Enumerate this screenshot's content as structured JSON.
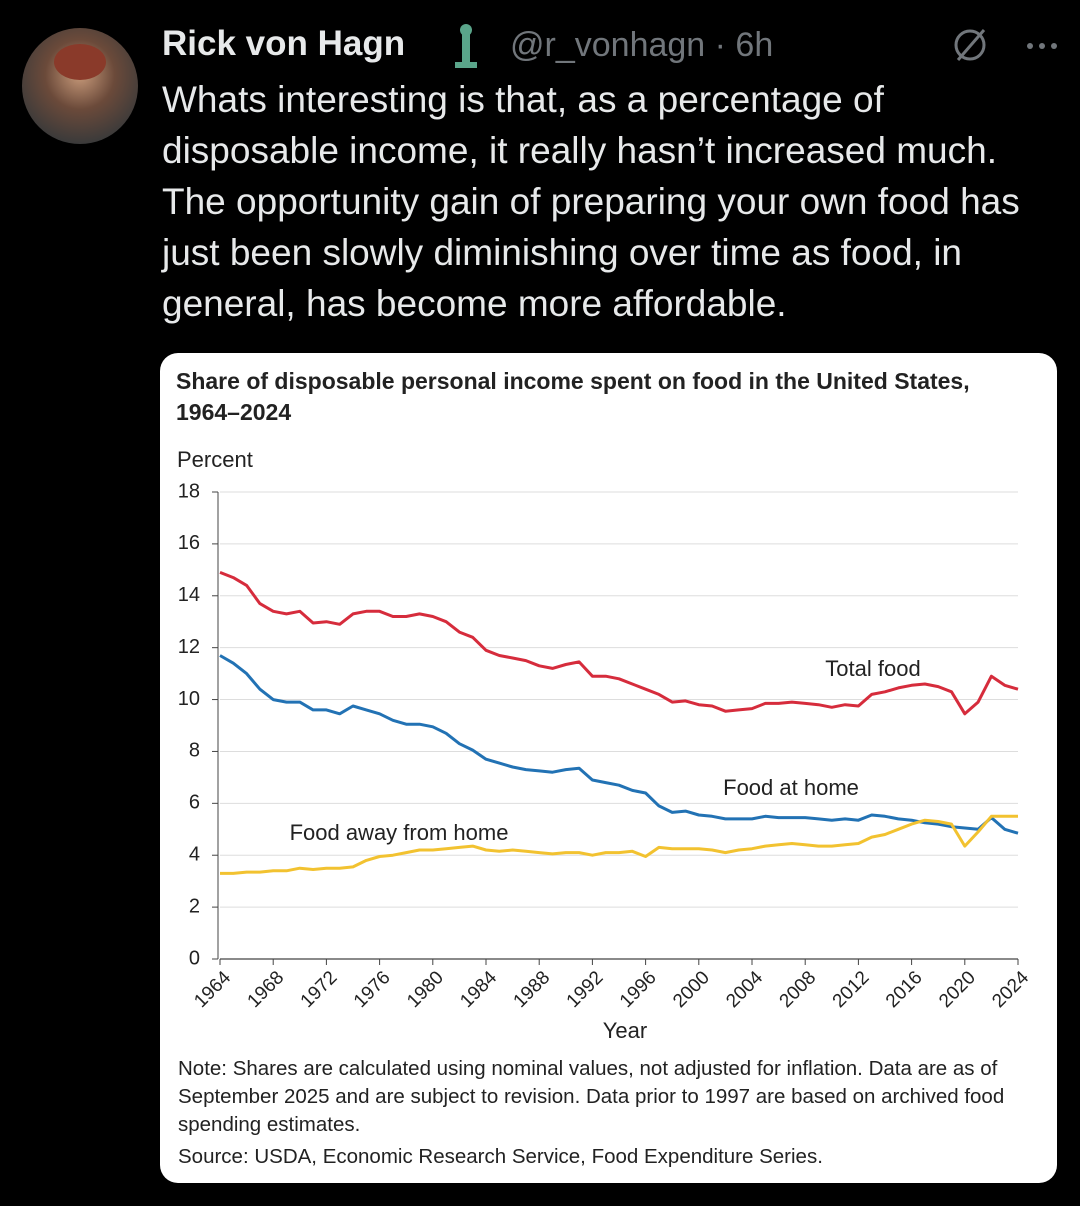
{
  "tweet": {
    "name": "Rick von Hagn",
    "handle": "@r_vonhagn",
    "time": "6h",
    "text": "Whats interesting is that, as a percentage of disposable income, it really hasn’t increased much. The opportunity gain of preparing your own food has just been slowly diminishing over time as food, in general, has become more affordable."
  },
  "chart_data": {
    "type": "line",
    "title": "Share of disposable personal income spent on food in the United States, 1964–2024",
    "ylabel": "Percent",
    "xlabel": "Year",
    "note": "Note: Shares are calculated using nominal values, not adjusted for inflation. Data are as of September 2025 and are subject to revision. Data prior to 1997 are based on archived food spending estimates.",
    "source": "Source: USDA, Economic Research Service, Food Expenditure Series.",
    "x": [
      1964,
      1965,
      1966,
      1967,
      1968,
      1969,
      1970,
      1971,
      1972,
      1973,
      1974,
      1975,
      1976,
      1977,
      1978,
      1979,
      1980,
      1981,
      1982,
      1983,
      1984,
      1985,
      1986,
      1987,
      1988,
      1989,
      1990,
      1991,
      1992,
      1993,
      1994,
      1995,
      1996,
      1997,
      1998,
      1999,
      2000,
      2001,
      2002,
      2003,
      2004,
      2005,
      2006,
      2007,
      2008,
      2009,
      2010,
      2011,
      2012,
      2013,
      2014,
      2015,
      2016,
      2017,
      2018,
      2019,
      2020,
      2021,
      2022,
      2023,
      2024
    ],
    "series": [
      {
        "name": "Total food",
        "color": "#d62c3c",
        "values": [
          14.9,
          14.7,
          14.4,
          13.7,
          13.4,
          13.3,
          13.4,
          12.95,
          13.0,
          12.9,
          13.3,
          13.4,
          13.4,
          13.2,
          13.2,
          13.3,
          13.2,
          13.0,
          12.6,
          12.4,
          11.9,
          11.7,
          11.6,
          11.5,
          11.3,
          11.2,
          11.35,
          11.45,
          10.9,
          10.9,
          10.8,
          10.6,
          10.4,
          10.2,
          9.9,
          9.95,
          9.8,
          9.75,
          9.55,
          9.6,
          9.65,
          9.85,
          9.85,
          9.9,
          9.85,
          9.8,
          9.7,
          9.8,
          9.75,
          10.2,
          10.3,
          10.45,
          10.55,
          10.6,
          10.5,
          10.3,
          9.45,
          9.9,
          10.9,
          10.55,
          10.4
        ]
      },
      {
        "name": "Food at home",
        "color": "#2272b4",
        "values": [
          11.7,
          11.4,
          11.0,
          10.4,
          10.0,
          9.9,
          9.9,
          9.6,
          9.6,
          9.45,
          9.75,
          9.6,
          9.45,
          9.2,
          9.05,
          9.05,
          8.95,
          8.7,
          8.3,
          8.05,
          7.7,
          7.55,
          7.4,
          7.3,
          7.25,
          7.2,
          7.3,
          7.35,
          6.9,
          6.8,
          6.7,
          6.5,
          6.4,
          5.9,
          5.65,
          5.7,
          5.55,
          5.5,
          5.4,
          5.4,
          5.4,
          5.5,
          5.45,
          5.45,
          5.45,
          5.4,
          5.35,
          5.4,
          5.35,
          5.55,
          5.5,
          5.4,
          5.35,
          5.25,
          5.2,
          5.1,
          5.05,
          5.0,
          5.45,
          5.0,
          4.85
        ]
      },
      {
        "name": "Food away from home",
        "color": "#f2c230",
        "values": [
          3.3,
          3.3,
          3.35,
          3.35,
          3.4,
          3.4,
          3.5,
          3.45,
          3.5,
          3.5,
          3.55,
          3.8,
          3.95,
          4.0,
          4.1,
          4.2,
          4.2,
          4.25,
          4.3,
          4.35,
          4.2,
          4.15,
          4.2,
          4.15,
          4.1,
          4.05,
          4.1,
          4.1,
          4.0,
          4.1,
          4.1,
          4.15,
          3.95,
          4.3,
          4.25,
          4.25,
          4.25,
          4.2,
          4.1,
          4.2,
          4.25,
          4.35,
          4.4,
          4.45,
          4.4,
          4.35,
          4.35,
          4.4,
          4.45,
          4.7,
          4.8,
          5.0,
          5.2,
          5.35,
          5.3,
          5.2,
          4.35,
          4.9,
          5.5,
          5.5,
          5.5
        ]
      }
    ],
    "xlim": [
      1964,
      2024
    ],
    "xticks": [
      1964,
      1968,
      1972,
      1976,
      1980,
      1984,
      1988,
      1992,
      1996,
      2000,
      2004,
      2008,
      2012,
      2016,
      2020,
      2024
    ],
    "ylim": [
      0,
      18
    ],
    "yticks": [
      0,
      2,
      4,
      6,
      8,
      10,
      12,
      14,
      16,
      18
    ],
    "grid": true
  }
}
